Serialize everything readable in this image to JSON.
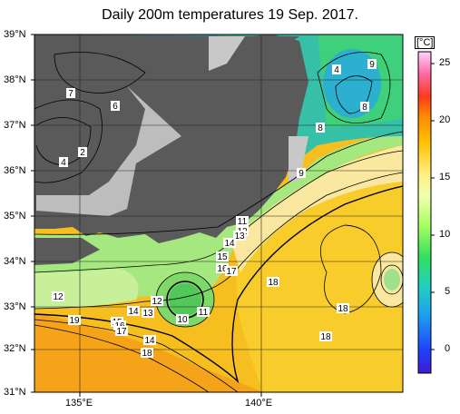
{
  "title": "Daily 200m temperatures 19 Sep. 2017.",
  "lat_labels": [
    "39°N",
    "38°N",
    "37°N",
    "36°N",
    "35°N",
    "34°N",
    "33°N",
    "32°N",
    "31°N"
  ],
  "lon_labels": [
    "135°E",
    "140°E"
  ],
  "colorbar": {
    "unit": "[°C]",
    "ticks": [
      "25",
      "20",
      "15",
      "10",
      "5",
      "0"
    ],
    "range": [
      -2,
      26
    ]
  },
  "contour_labels": [
    "7",
    "6",
    "2",
    "4",
    "4",
    "9",
    "8",
    "8",
    "9",
    "11",
    "12",
    "13",
    "14",
    "15",
    "16",
    "17",
    "18",
    "12",
    "14",
    "13",
    "12",
    "10",
    "11",
    "19",
    "15",
    "16",
    "17",
    "14",
    "18",
    "18",
    "18"
  ],
  "colors": {
    "land": "#5a5a5a",
    "coast_gray": "#c8c8c8",
    "warm": "#f4b300",
    "cool": "#1a6fd0"
  }
}
